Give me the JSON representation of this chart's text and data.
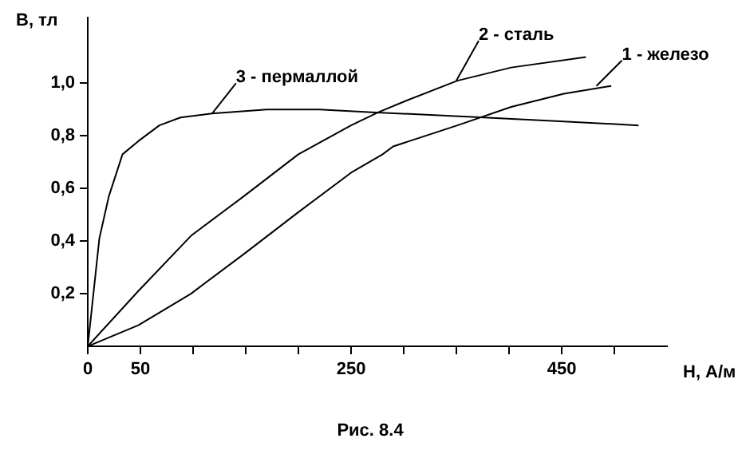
{
  "chart_data": {
    "type": "line",
    "xlabel": "H, А/м",
    "ylabel": "B, тл",
    "xlim": [
      0,
      550
    ],
    "ylim": [
      0,
      1.25
    ],
    "xticks": [
      0,
      50,
      {
        "value": 100,
        "label": null
      },
      {
        "value": 150,
        "label": null
      },
      {
        "value": 200,
        "label": null
      },
      250,
      {
        "value": 300,
        "label": null
      },
      {
        "value": 350,
        "label": null
      },
      {
        "value": 400,
        "label": null
      },
      450,
      {
        "value": 500,
        "label": null
      }
    ],
    "yticks": [
      {
        "value": 0.2,
        "label": "0,2"
      },
      {
        "value": 0.4,
        "label": "0,4"
      },
      {
        "value": 0.6,
        "label": "0,6"
      },
      {
        "value": 0.8,
        "label": "0,8"
      },
      {
        "value": 1.0,
        "label": "1,0"
      }
    ],
    "grid": false,
    "legend": false,
    "marker": "none",
    "line_style": "solid",
    "series": [
      {
        "color": "#000000",
        "x": [
          0,
          48,
          98,
          148,
          200,
          250,
          280,
          290,
          351,
          402,
          452,
          497
        ],
        "values": [
          0,
          0.08,
          0.2,
          0.35,
          0.51,
          0.66,
          0.73,
          0.76,
          0.84,
          0.91,
          0.96,
          0.99
        ]
      },
      {
        "color": "#000000",
        "x": [
          0,
          48,
          98,
          148,
          200,
          250,
          276,
          300,
          351,
          402,
          473
        ],
        "values": [
          0,
          0.21,
          0.42,
          0.57,
          0.73,
          0.84,
          0.89,
          0.93,
          1.01,
          1.06,
          1.1
        ]
      },
      {
        "color": "#000000",
        "x": [
          0,
          11,
          20,
          33,
          48,
          68,
          88,
          118,
          170,
          220,
          270,
          376,
          452,
          523
        ],
        "values": [
          0,
          0.41,
          0.57,
          0.73,
          0.78,
          0.84,
          0.87,
          0.885,
          0.9,
          0.9,
          0.89,
          0.87,
          0.855,
          0.84
        ]
      }
    ],
    "annotations": [
      {
        "text": "1 - железо",
        "x": 483,
        "y": 0.99
      },
      {
        "text": "2 - сталь",
        "x": 350,
        "y": 1.01
      },
      {
        "text": "3 - пермаллой",
        "x": 118,
        "y": 0.885
      },
      "Рис. 8.4"
    ]
  }
}
